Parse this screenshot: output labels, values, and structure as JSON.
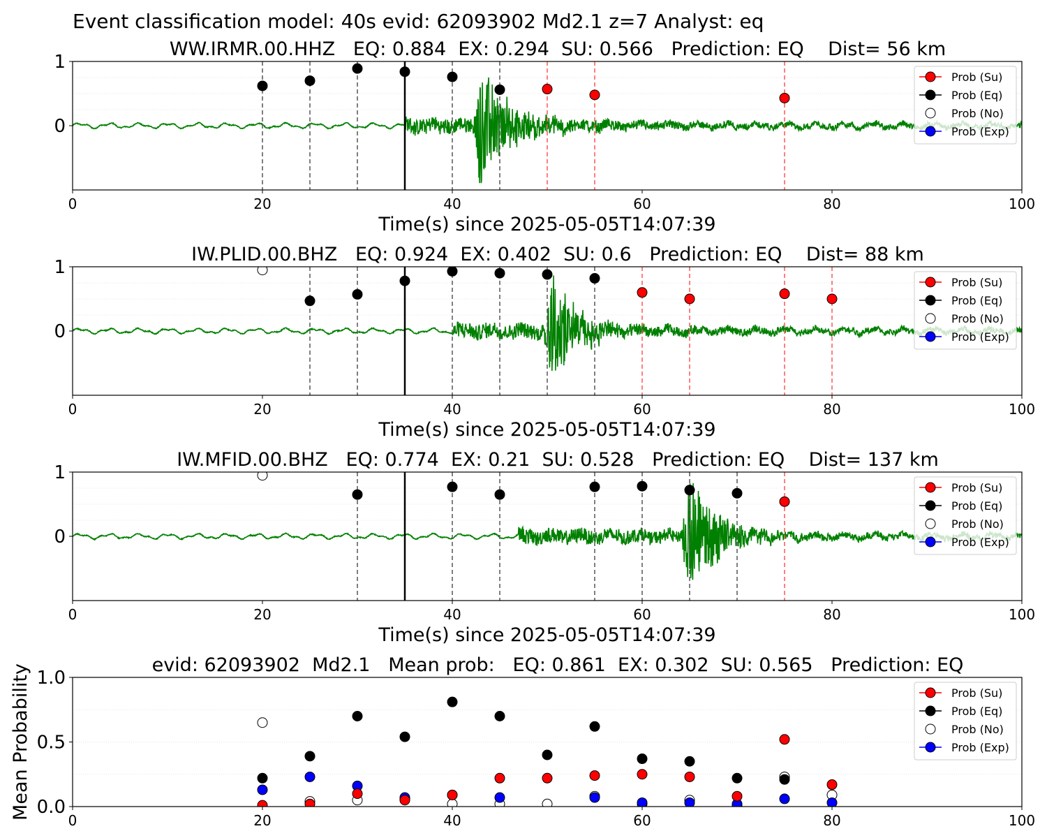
{
  "figure": {
    "suptitle": "Event classification model: 40s evid: 62093902 Md2.1 z=7 Analyst: eq"
  },
  "legend": {
    "entries": [
      {
        "label": "Prob (Su)",
        "face": "#ff0000",
        "edge": "#000000",
        "line": "#ff0000"
      },
      {
        "label": "Prob (Eq)",
        "face": "#000000",
        "edge": "#000000",
        "line": "#000000"
      },
      {
        "label": "Prob (No)",
        "face": "#ffffff",
        "edge": "#000000",
        "line": "#ffffff"
      },
      {
        "label": "Prob (Exp)",
        "face": "#0000ff",
        "edge": "#000000",
        "line": "#0000ff"
      }
    ]
  },
  "colors": {
    "waveform": "#008000",
    "eq_marker_line": "#555555",
    "su_marker_line": "#ff5555",
    "origin_line": "#000000"
  },
  "chart_data": [
    {
      "type": "line",
      "title": "WW.IRMR.00.HHZ   EQ: 0.884  EX: 0.294  SU: 0.566   Prediction: EQ    Dist= 56 km",
      "xlabel": "Time(s) since 2025-05-05T14:07:39",
      "ylabel": "",
      "xlim": [
        0,
        100
      ],
      "ylim": [
        -1,
        1
      ],
      "xticks": [
        "0",
        "20",
        "40",
        "60",
        "80",
        "100"
      ],
      "yticks": [
        "1",
        "0"
      ],
      "origin_time": 35,
      "waveform": {
        "signal_start": 35,
        "peak_time": 43,
        "amplitude": 0.95,
        "decay": 9,
        "noise": 0.04
      },
      "points": [
        {
          "x": 20,
          "y": 0.62,
          "cls": "Eq"
        },
        {
          "x": 25,
          "y": 0.7,
          "cls": "Eq"
        },
        {
          "x": 30,
          "y": 0.89,
          "cls": "Eq"
        },
        {
          "x": 35,
          "y": 0.84,
          "cls": "Eq"
        },
        {
          "x": 40,
          "y": 0.76,
          "cls": "Eq"
        },
        {
          "x": 45,
          "y": 0.56,
          "cls": "Eq"
        },
        {
          "x": 50,
          "y": 0.57,
          "cls": "Su"
        },
        {
          "x": 55,
          "y": 0.48,
          "cls": "Su"
        },
        {
          "x": 75,
          "y": 0.43,
          "cls": "Su"
        }
      ]
    },
    {
      "type": "line",
      "title": "IW.PLID.00.BHZ   EQ: 0.924  EX: 0.402  SU: 0.6   Prediction: EQ    Dist= 88 km",
      "xlabel": "Time(s) since 2025-05-05T14:07:39",
      "ylabel": "",
      "xlim": [
        0,
        100
      ],
      "ylim": [
        -1,
        1
      ],
      "xticks": [
        "0",
        "20",
        "40",
        "60",
        "80",
        "100"
      ],
      "yticks": [
        "1",
        "0"
      ],
      "origin_time": 35,
      "waveform": {
        "signal_start": 40,
        "peak_time": 50.5,
        "amplitude": 0.9,
        "decay": 8,
        "noise": 0.04
      },
      "points": [
        {
          "x": 20,
          "y": 0.95,
          "cls": "No"
        },
        {
          "x": 25,
          "y": 0.47,
          "cls": "Eq"
        },
        {
          "x": 30,
          "y": 0.57,
          "cls": "Eq"
        },
        {
          "x": 35,
          "y": 0.78,
          "cls": "Eq"
        },
        {
          "x": 40,
          "y": 0.93,
          "cls": "Eq"
        },
        {
          "x": 45,
          "y": 0.9,
          "cls": "Eq"
        },
        {
          "x": 50,
          "y": 0.88,
          "cls": "Eq"
        },
        {
          "x": 55,
          "y": 0.82,
          "cls": "Eq"
        },
        {
          "x": 60,
          "y": 0.6,
          "cls": "Su"
        },
        {
          "x": 65,
          "y": 0.5,
          "cls": "Su"
        },
        {
          "x": 75,
          "y": 0.58,
          "cls": "Su"
        },
        {
          "x": 80,
          "y": 0.5,
          "cls": "Su"
        }
      ]
    },
    {
      "type": "line",
      "title": "IW.MFID.00.BHZ   EQ: 0.774  EX: 0.21  SU: 0.528   Prediction: EQ    Dist= 137 km",
      "xlabel": "Time(s) since 2025-05-05T14:07:39",
      "ylabel": "",
      "xlim": [
        0,
        100
      ],
      "ylim": [
        -1,
        1
      ],
      "xticks": [
        "0",
        "20",
        "40",
        "60",
        "80",
        "100"
      ],
      "yticks": [
        "1",
        "0"
      ],
      "origin_time": 35,
      "waveform": {
        "signal_start": 47,
        "peak_time": 65,
        "amplitude": 0.95,
        "decay": 9,
        "noise": 0.04
      },
      "points": [
        {
          "x": 20,
          "y": 0.95,
          "cls": "No"
        },
        {
          "x": 30,
          "y": 0.65,
          "cls": "Eq"
        },
        {
          "x": 40,
          "y": 0.77,
          "cls": "Eq"
        },
        {
          "x": 45,
          "y": 0.65,
          "cls": "Eq"
        },
        {
          "x": 55,
          "y": 0.77,
          "cls": "Eq"
        },
        {
          "x": 60,
          "y": 0.78,
          "cls": "Eq"
        },
        {
          "x": 65,
          "y": 0.72,
          "cls": "Eq"
        },
        {
          "x": 70,
          "y": 0.67,
          "cls": "Eq"
        },
        {
          "x": 75,
          "y": 0.54,
          "cls": "Su"
        }
      ]
    },
    {
      "type": "scatter",
      "title": "evid: 62093902  Md2.1   Mean prob:   EQ: 0.861  EX: 0.302  SU: 0.565   Prediction: EQ",
      "xlabel": "",
      "ylabel": "Mean Probability",
      "xlim": [
        0,
        100
      ],
      "ylim": [
        0,
        1
      ],
      "xticks": [
        "0",
        "20",
        "40",
        "60",
        "80",
        "100"
      ],
      "yticks": [
        "1.0",
        "0.5",
        "0.0"
      ],
      "x": [
        20,
        25,
        30,
        35,
        40,
        45,
        50,
        55,
        60,
        65,
        70,
        75,
        80
      ],
      "series": [
        {
          "name": "Prob (No)",
          "values": [
            0.65,
            0.04,
            0.05,
            0.06,
            0.02,
            0.02,
            0.02,
            0.08,
            0.02,
            0.05,
            0.01,
            0.23,
            0.09
          ]
        },
        {
          "name": "Prob (Exp)",
          "values": [
            0.13,
            0.23,
            0.16,
            0.07,
            0.09,
            0.07,
            null,
            0.07,
            0.03,
            0.03,
            0.02,
            0.06,
            0.03
          ]
        },
        {
          "name": "Prob (Eq)",
          "values": [
            0.22,
            0.39,
            0.7,
            0.54,
            0.81,
            0.7,
            0.4,
            0.62,
            0.37,
            0.35,
            0.22,
            0.21,
            null
          ]
        },
        {
          "name": "Prob (Su)",
          "values": [
            0.01,
            0.02,
            0.1,
            0.05,
            0.09,
            0.22,
            0.22,
            0.24,
            0.25,
            0.23,
            0.08,
            0.52,
            0.17
          ]
        }
      ]
    }
  ]
}
